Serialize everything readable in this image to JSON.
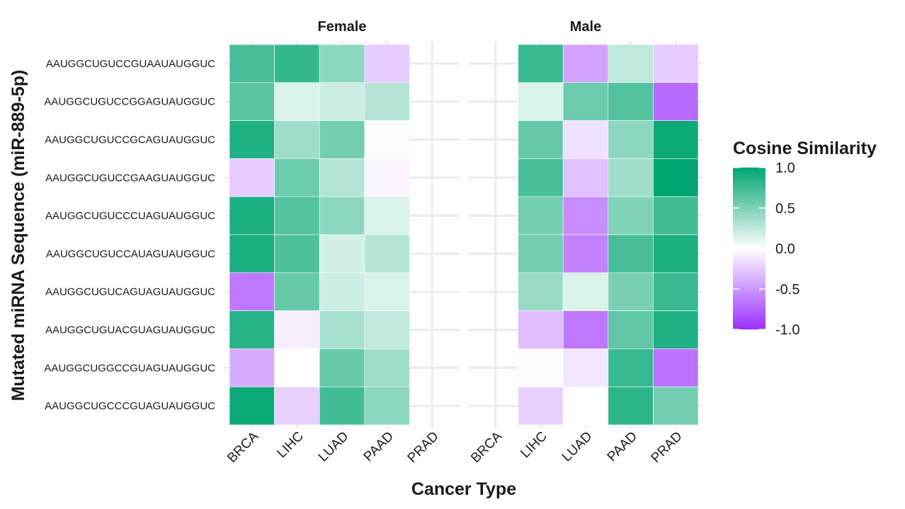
{
  "chart_data": {
    "type": "heatmap",
    "title": "",
    "xlabel": "Cancer Type",
    "ylabel": "Mutated miRNA Sequence (miR-889-5p)",
    "rows": [
      "AAUGGCUGUCCGUAAUAUGGUC",
      "AAUGGCUGUCCGGAGUAUGGUC",
      "AAUGGCUGUCCGCAGUAUGGUC",
      "AAUGGCUGUCCGAAGUAUGGUC",
      "AAUGGCUGUCCCUAGUAUGGUC",
      "AAUGGCUGUCCAUAGUAUGGUC",
      "AAUGGCUGUCAGUAGUAUGGUC",
      "AAUGGCUGUACGUAGUAUGGUC",
      "AAUGGCUGGCCGUAGUAUGGUC",
      "AAUGGCUGCCCGUAGUAUGGUC"
    ],
    "columns": [
      "BRCA",
      "LIHC",
      "LUAD",
      "PAAD",
      "PRAD"
    ],
    "facets": [
      {
        "name": "Female",
        "values": [
          [
            0.72,
            0.8,
            0.45,
            -0.25,
            null
          ],
          [
            0.65,
            0.15,
            0.2,
            0.3,
            null
          ],
          [
            0.88,
            0.38,
            0.55,
            0.02,
            null
          ],
          [
            -0.25,
            0.58,
            0.3,
            -0.05,
            null
          ],
          [
            0.9,
            0.68,
            0.45,
            0.15,
            null
          ],
          [
            0.9,
            0.7,
            0.18,
            0.3,
            null
          ],
          [
            -0.65,
            0.6,
            0.2,
            0.15,
            null
          ],
          [
            0.85,
            -0.08,
            0.35,
            0.25,
            null
          ],
          [
            -0.4,
            0.0,
            0.6,
            0.38,
            null
          ],
          [
            0.95,
            -0.22,
            0.75,
            0.45,
            null
          ]
        ]
      },
      {
        "name": "Male",
        "values": [
          [
            null,
            0.78,
            -0.45,
            0.25,
            -0.25
          ],
          [
            null,
            0.15,
            0.58,
            0.68,
            -0.72
          ],
          [
            null,
            0.6,
            -0.15,
            0.45,
            0.95
          ],
          [
            null,
            0.72,
            -0.3,
            0.38,
            1.0
          ],
          [
            null,
            0.55,
            -0.55,
            0.5,
            0.75
          ],
          [
            null,
            0.55,
            -0.6,
            0.72,
            0.9
          ],
          [
            null,
            0.4,
            0.15,
            0.52,
            0.78
          ],
          [
            null,
            -0.32,
            -0.65,
            0.62,
            0.88
          ],
          [
            null,
            -0.02,
            -0.12,
            0.78,
            -0.68
          ],
          [
            null,
            -0.22,
            0.0,
            0.82,
            0.55
          ]
        ]
      }
    ],
    "legend": {
      "title": "Cosine Similarity",
      "position": "right",
      "range": [
        -1,
        1
      ],
      "ticks": [
        "1.0",
        "0.5",
        "0.0",
        "-0.5",
        "-1.0"
      ],
      "colors": {
        "low": "#9B30FF",
        "mid": "#FFFFFF",
        "high": "#00A572"
      }
    },
    "grid": true
  }
}
